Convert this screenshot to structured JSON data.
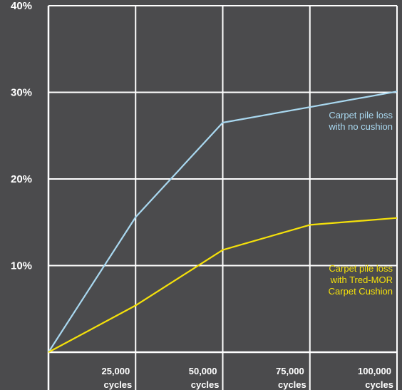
{
  "chart_data": {
    "type": "line",
    "title": "",
    "xlabel": "",
    "ylabel": "",
    "x": [
      0,
      25000,
      50000,
      75000,
      100000
    ],
    "xlim": [
      0,
      100000
    ],
    "ylim": [
      0,
      40
    ],
    "grid": true,
    "legend": "none",
    "yticks": [
      {
        "value": 10,
        "label": "10%"
      },
      {
        "value": 20,
        "label": "20%"
      },
      {
        "value": 30,
        "label": "30%"
      },
      {
        "value": 40,
        "label": "40%"
      }
    ],
    "xticks": [
      {
        "value": 25000,
        "line1": "25,000",
        "line2": "cycles"
      },
      {
        "value": 50000,
        "line1": "50,000",
        "line2": "cycles"
      },
      {
        "value": 75000,
        "line1": "75,000",
        "line2": "cycles"
      },
      {
        "value": 100000,
        "line1": "100,000",
        "line2": "cycles"
      }
    ],
    "series": [
      {
        "key": "no-cushion",
        "color": "#a9d8f0",
        "values": [
          0,
          15.6,
          26.5,
          28.3,
          30.1
        ],
        "annotation": [
          "Carpet pile loss",
          "with no cushion"
        ],
        "annotation_at": {
          "x": 72000,
          "y": 27
        }
      },
      {
        "key": "tred-mor",
        "color": "#f5e10a",
        "values": [
          0,
          5.4,
          11.8,
          14.7,
          15.5
        ],
        "annotation": [
          "Carpet pile loss",
          "with Tred-MOR",
          "Carpet Cushion"
        ],
        "annotation_at": {
          "x": 72000,
          "y": 9.3
        }
      }
    ]
  }
}
